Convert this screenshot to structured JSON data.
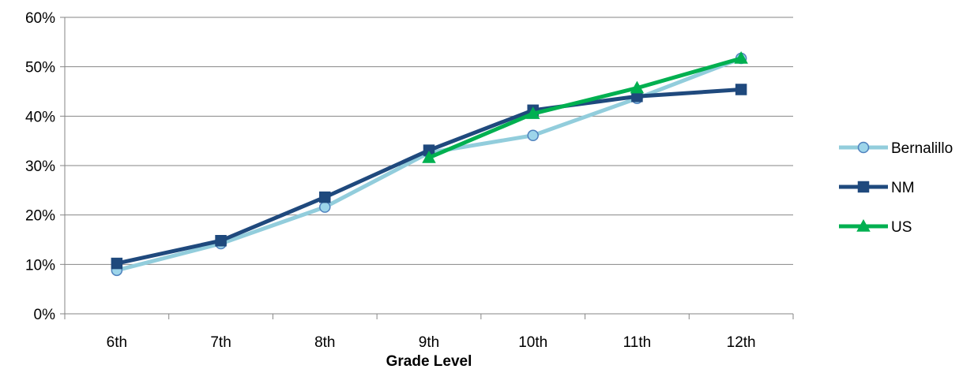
{
  "chart_data": {
    "type": "line",
    "xlabel": "Grade Level",
    "ylabel": "",
    "categories": [
      "6th",
      "7th",
      "8th",
      "9th",
      "10th",
      "11th",
      "12th"
    ],
    "yticks": [
      "0%",
      "10%",
      "20%",
      "30%",
      "40%",
      "50%",
      "60%"
    ],
    "ylim": [
      0,
      60
    ],
    "grid": "horizontal",
    "legend": "right",
    "series": [
      {
        "name": "Bernalillo",
        "color": "#92cddc",
        "marker_fill": "#9dd5ea",
        "marker_stroke": "#4f81bd",
        "marker": "circle",
        "values": [
          8.8,
          14.2,
          21.6,
          32.6,
          36.1,
          43.6,
          51.7
        ]
      },
      {
        "name": "NM",
        "color": "#1f497d",
        "marker_fill": "#1f497d",
        "marker_stroke": "#1f497d",
        "marker": "square",
        "values": [
          10.2,
          14.8,
          23.6,
          33.1,
          41.2,
          44.0,
          45.4
        ]
      },
      {
        "name": "US",
        "color": "#00b050",
        "marker_fill": "#00b050",
        "marker_stroke": "#00b050",
        "marker": "triangle",
        "values": [
          null,
          null,
          null,
          31.6,
          40.5,
          45.7,
          51.7
        ]
      }
    ]
  }
}
